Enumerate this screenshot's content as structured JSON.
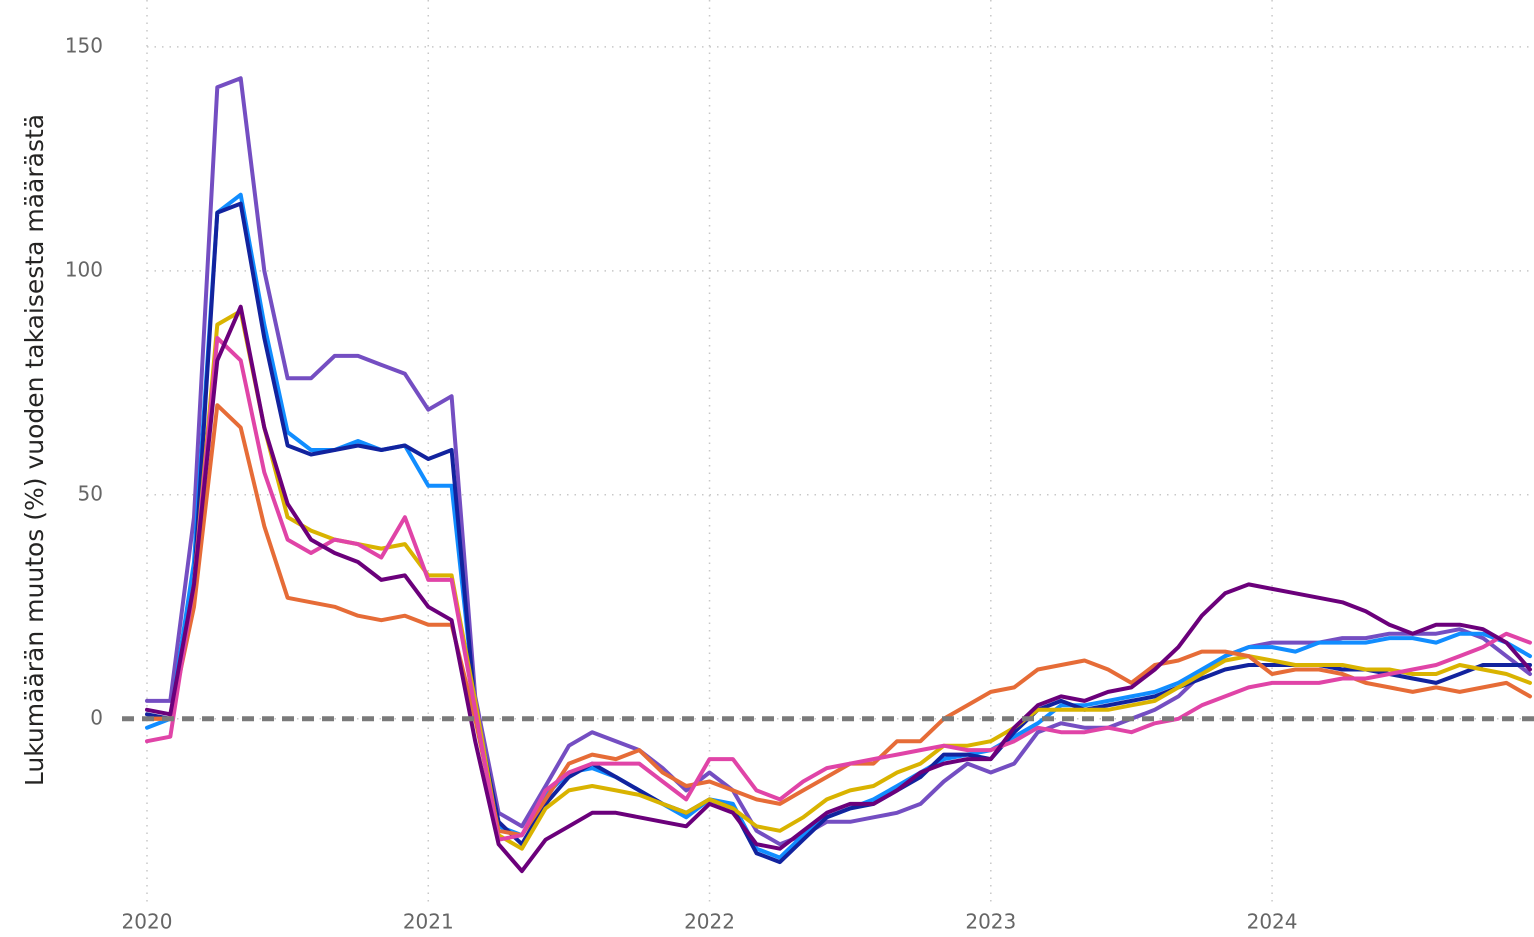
{
  "chart_data": {
    "type": "line",
    "ylabel": "Lukumäärän muutos (%) vuoden takaisesta määrästä",
    "x": [
      2020,
      2020.083,
      2020.167,
      2020.25,
      2020.333,
      2020.417,
      2020.5,
      2020.583,
      2020.667,
      2020.75,
      2020.833,
      2020.917,
      2021,
      2021.083,
      2021.167,
      2021.25,
      2021.333,
      2021.417,
      2021.5,
      2021.583,
      2021.667,
      2021.75,
      2021.833,
      2021.917,
      2022,
      2022.083,
      2022.167,
      2022.25,
      2022.333,
      2022.417,
      2022.5,
      2022.583,
      2022.667,
      2022.75,
      2022.833,
      2022.917,
      2023,
      2023.083,
      2023.167,
      2023.25,
      2023.333,
      2023.417,
      2023.5,
      2023.583,
      2023.667,
      2023.75,
      2023.833,
      2023.917,
      2024,
      2024.083,
      2024.167,
      2024.25,
      2024.333,
      2024.417,
      2024.5,
      2024.583,
      2024.667,
      2024.75,
      2024.833,
      2024.917
    ],
    "xlim": [
      2020,
      2024.917
    ],
    "xticks": [
      2020,
      2021,
      2022,
      2023,
      2024
    ],
    "ylim": [
      -38,
      158
    ],
    "yticks": [
      0,
      50,
      100,
      150
    ],
    "grid": true,
    "reference_line": 0,
    "series": [
      {
        "color": "#744EC2",
        "values": [
          4,
          4,
          45,
          141,
          143,
          100,
          76,
          76,
          81,
          81,
          79,
          77,
          69,
          72,
          5,
          -21,
          -24,
          -15,
          -6,
          -3,
          -5,
          -7,
          -11,
          -16,
          -12,
          -16,
          -25,
          -28,
          -26,
          -23,
          -23,
          -22,
          -21,
          -19,
          -14,
          -10,
          -12,
          -10,
          -3,
          -1,
          -2,
          -2,
          0,
          2,
          5,
          10,
          14,
          16,
          17,
          17,
          17,
          18,
          18,
          19,
          19,
          19,
          20,
          18,
          14,
          10
        ]
      },
      {
        "color": "#118DFF",
        "values": [
          -2,
          0,
          35,
          113,
          117,
          88,
          64,
          60,
          60,
          62,
          60,
          61,
          52,
          52,
          3,
          -24,
          -26,
          -17,
          -12,
          -11,
          -13,
          -16,
          -19,
          -22,
          -18,
          -19,
          -29,
          -31,
          -26,
          -22,
          -20,
          -18,
          -15,
          -12,
          -9,
          -8,
          -7,
          -4,
          -1,
          3,
          3,
          4,
          5,
          6,
          8,
          11,
          14,
          16,
          16,
          15,
          17,
          17,
          17,
          18,
          18,
          17,
          19,
          19,
          17,
          14
        ]
      },
      {
        "color": "#12239E",
        "values": [
          1,
          0,
          30,
          113,
          115,
          85,
          61,
          59,
          60,
          61,
          60,
          61,
          58,
          60,
          2,
          -23,
          -28,
          -19,
          -13,
          -10,
          -13,
          -16,
          -19,
          -21,
          -18,
          -20,
          -30,
          -32,
          -27,
          -22,
          -20,
          -19,
          -16,
          -13,
          -8,
          -8,
          -9,
          -3,
          2,
          4,
          2,
          3,
          4,
          5,
          7,
          9,
          11,
          12,
          12,
          12,
          12,
          11,
          11,
          10,
          9,
          8,
          10,
          12,
          12,
          12
        ]
      },
      {
        "color": "#D9B300",
        "values": [
          0,
          0,
          30,
          88,
          91,
          65,
          45,
          42,
          40,
          39,
          38,
          39,
          32,
          32,
          4,
          -26,
          -29,
          -20,
          -16,
          -15,
          -16,
          -17,
          -19,
          -21,
          -18,
          -20,
          -24,
          -25,
          -22,
          -18,
          -16,
          -15,
          -12,
          -10,
          -6,
          -6,
          -5,
          -2,
          2,
          2,
          2,
          2,
          3,
          4,
          7,
          10,
          13,
          14,
          13,
          12,
          12,
          12,
          11,
          11,
          10,
          10,
          12,
          11,
          10,
          8
        ]
      },
      {
        "color": "#E66C37",
        "values": [
          0,
          0,
          25,
          70,
          65,
          43,
          27,
          26,
          25,
          23,
          22,
          23,
          21,
          21,
          0,
          -25,
          -26,
          -18,
          -10,
          -8,
          -9,
          -7,
          -12,
          -15,
          -14,
          -16,
          -18,
          -19,
          -16,
          -13,
          -10,
          -10,
          -5,
          -5,
          0,
          3,
          6,
          7,
          11,
          12,
          13,
          11,
          8,
          12,
          13,
          15,
          15,
          14,
          10,
          11,
          11,
          10,
          8,
          7,
          6,
          7,
          6,
          7,
          8,
          5
        ]
      },
      {
        "color": "#E044A7",
        "values": [
          -5,
          -4,
          30,
          85,
          80,
          55,
          40,
          37,
          40,
          39,
          36,
          45,
          31,
          31,
          2,
          -27,
          -26,
          -16,
          -12,
          -10,
          -10,
          -10,
          -14,
          -18,
          -9,
          -9,
          -16,
          -18,
          -14,
          -11,
          -10,
          -9,
          -8,
          -7,
          -6,
          -7,
          -7,
          -5,
          -2,
          -3,
          -3,
          -2,
          -3,
          -1,
          0,
          3,
          5,
          7,
          8,
          8,
          8,
          9,
          9,
          10,
          11,
          12,
          14,
          16,
          19,
          17
        ]
      },
      {
        "color": "#6B007B",
        "values": [
          2,
          1,
          30,
          80,
          92,
          65,
          48,
          40,
          37,
          35,
          31,
          32,
          25,
          22,
          -5,
          -28,
          -34,
          -27,
          -24,
          -21,
          -21,
          -22,
          -23,
          -24,
          -19,
          -21,
          -28,
          -29,
          -25,
          -21,
          -19,
          -19,
          -16,
          -12,
          -10,
          -9,
          -9,
          -2,
          3,
          5,
          4,
          6,
          7,
          11,
          16,
          23,
          28,
          30,
          29,
          28,
          27,
          26,
          24,
          21,
          19,
          21,
          21,
          20,
          17,
          11
        ]
      }
    ]
  }
}
